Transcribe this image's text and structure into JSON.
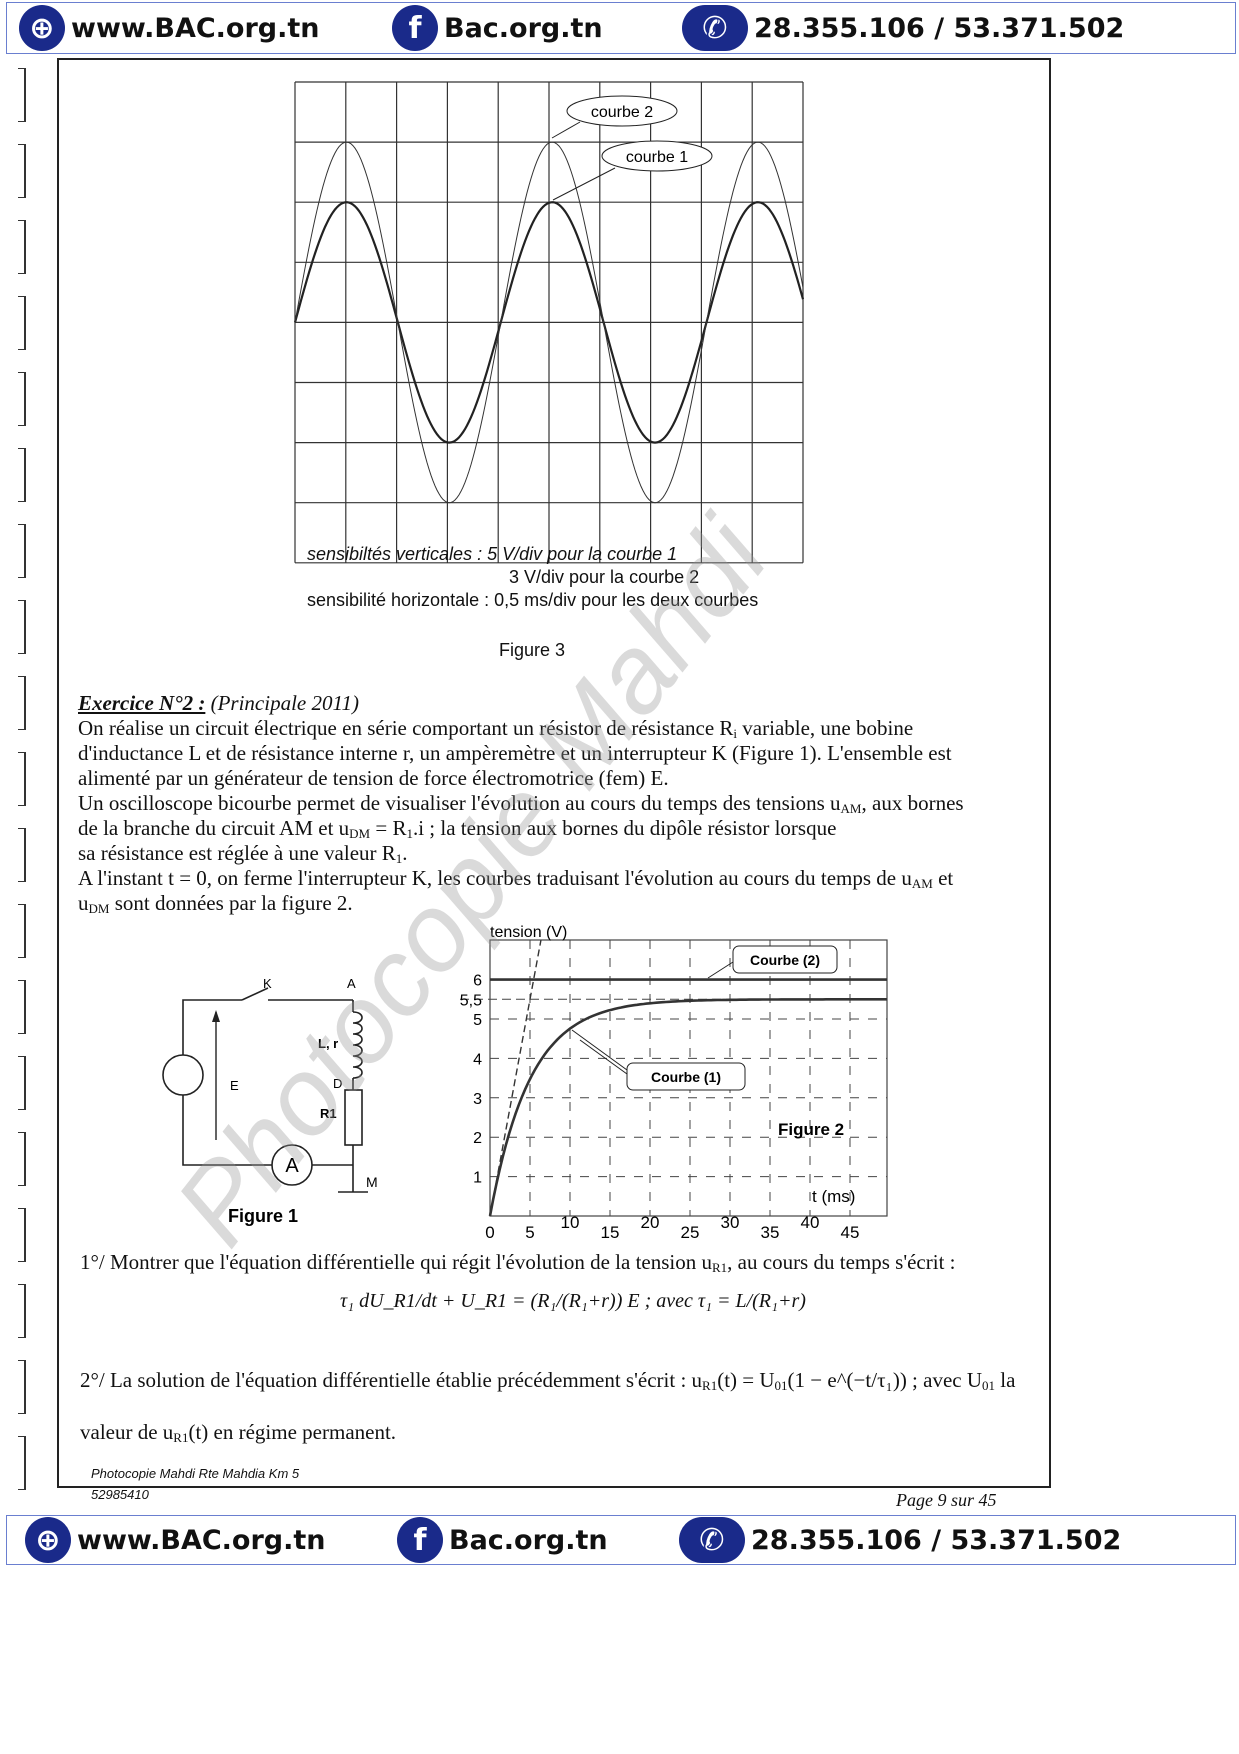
{
  "header": {
    "site": "www.BAC.org.tn",
    "facebook": "Bac.org.tn",
    "phone": "28.355.106 / 53.371.502",
    "icons": [
      "globe-icon",
      "facebook-icon",
      "phone-icon"
    ]
  },
  "figure3": {
    "label_courbe2": "courbe 2",
    "label_courbe1": "courbe 1",
    "sens_v1": "sensibiltés verticales : 5 V/div pour la courbe 1",
    "sens_v2": "3 V/div pour la courbe 2",
    "sens_h": "sensibilité horizontale : 0,5 ms/div pour les deux courbes",
    "caption": "Figure 3"
  },
  "exercise": {
    "title": "Exercice N°2 :",
    "source": "(Principale 2011)",
    "p1": [
      "On réalise un circuit électrique en série comportant un résistor de résistance R",
      "i",
      " variable, une bobine"
    ],
    "p2": "d'inductance L et de résistance interne r, un ampèremètre et un interrupteur K (Figure 1). L'ensemble est",
    "p3": "alimenté par un générateur de tension de force électromotrice (fem) E.",
    "p4": [
      " Un oscilloscope bicourbe permet de visualiser l'évolution au cours du temps des tensions u",
      "AM",
      ", aux bornes"
    ],
    "p5": [
      "de la branche du circuit AM et u",
      "DM",
      " = R",
      "1",
      ".i ; la tension aux bornes du dipôle résistor lorsque"
    ],
    "p6": [
      "sa résistance est réglée à une valeur R",
      "1",
      "."
    ],
    "p7": [
      "A l'instant t = 0, on ferme l'interrupteur K, les courbes traduisant l'évolution au cours du temps de u",
      "AM",
      " et"
    ],
    "p8": [
      "u",
      "DM",
      " sont données par la figure 2."
    ]
  },
  "figure1": {
    "caption": "Figure 1",
    "labels": {
      "K": "K",
      "A": "A",
      "Lr": "L, r",
      "E": "E",
      "D": "D",
      "R1": "R1",
      "ammeter": "A",
      "M": "M"
    }
  },
  "chart_data": {
    "type": "line",
    "ylabel": "tension (V)",
    "xlabel": "t (ms)",
    "yticks": [
      "1",
      "2",
      "3",
      "4",
      "5",
      "5,5",
      "6"
    ],
    "xticks": [
      "0",
      "5",
      "10",
      "15",
      "20",
      "25",
      "30",
      "35",
      "40",
      "45"
    ],
    "xlim": [
      0,
      50
    ],
    "ylim": [
      0,
      7
    ],
    "grid": "dashed",
    "series": [
      {
        "name": "Courbe (2)",
        "constant": 6
      },
      {
        "name": "Courbe (1)",
        "final": 5.5,
        "tau_ms": 5
      }
    ],
    "caption": "Figure 2"
  },
  "questions": {
    "q1": [
      "1°/ Montrer que l'équation différentielle qui régit l'évolution de la tension u",
      "R1",
      ", au cours du temps s'écrit :"
    ],
    "eq1": "τ₁ dU_R1/dt + U_R1 = (R₁/(R₁+r)) E   ;   avec τ₁ = L/(R₁+r)",
    "q2": [
      "2°/ La solution de l'équation différentielle établie précédemment s'écrit : u",
      "R1",
      "(t) = U",
      "01",
      "(1 − e^(−t/τ₁)) ; avec U",
      "01",
      " la"
    ],
    "q2b": [
      "valeur de u",
      "R1",
      "(t) en régime permanent."
    ]
  },
  "footer": {
    "line1": "Photocopie Mahdi Rte Mahdia Km 5",
    "line2": "52985410",
    "page": "Page 9 sur 45",
    "watermark": "Photocopie Mahdi"
  }
}
